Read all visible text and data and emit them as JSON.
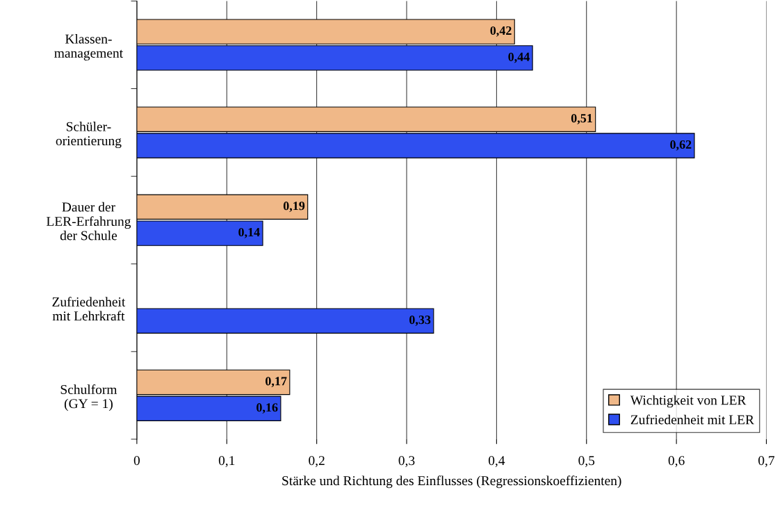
{
  "chart_data": {
    "type": "bar",
    "orientation": "horizontal",
    "categories": [
      "Klassen-\nmanagement",
      "Schüler-\norientierung",
      "Dauer der\nLER-Erfahrung\nder Schule",
      "Zufriedenheit\nmit Lehrkraft",
      "Schulform\n(GY = 1)"
    ],
    "series": [
      {
        "name": "Wichtigkeit von LER",
        "color": "#f0b888",
        "values": [
          0.42,
          0.51,
          0.19,
          null,
          0.17
        ],
        "value_labels": [
          "0,42",
          "0,51",
          "0,19",
          null,
          "0,17"
        ]
      },
      {
        "name": "Zufriedenheit mit LER",
        "color": "#2f4ff0",
        "values": [
          0.44,
          0.62,
          0.14,
          0.33,
          0.16
        ],
        "value_labels": [
          "0,44",
          "0,62",
          "0,14",
          "0,33",
          "0,16"
        ]
      }
    ],
    "xlabel": "Stärke und Richtung des Einflusses (Regressionskoeffizienten)",
    "xlim": [
      0,
      0.7
    ],
    "xticks": [
      0,
      {
        "value": 0.1,
        "label": "0,1"
      },
      {
        "value": 0.2,
        "label": "0,2"
      },
      {
        "value": 0.3,
        "label": "0,3"
      },
      {
        "value": 0.4,
        "label": "0,4"
      },
      {
        "value": 0.5,
        "label": "0,5"
      },
      {
        "value": 0.6,
        "label": "0,6"
      },
      {
        "value": 0.7,
        "label": "0,7"
      }
    ],
    "grid": "x",
    "legend": "bottom right"
  }
}
